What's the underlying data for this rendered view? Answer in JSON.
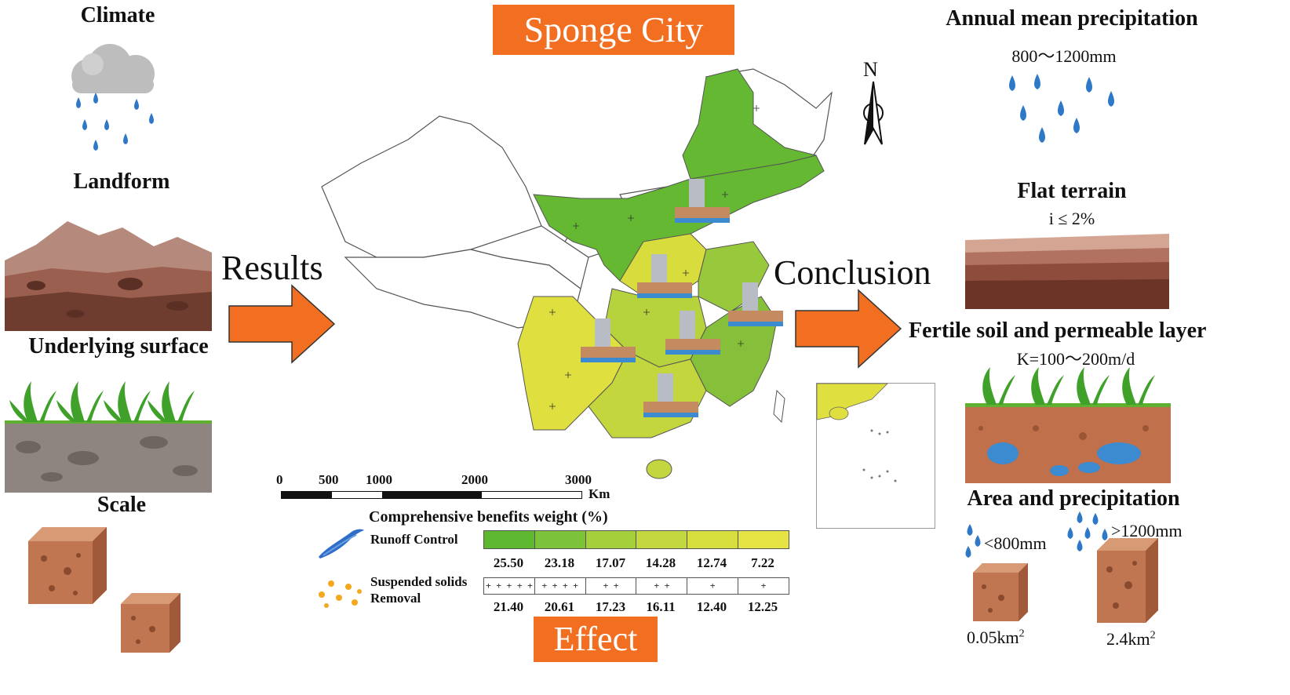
{
  "title_top": "Sponge City",
  "title_bottom": "Effect",
  "left": {
    "climate": "Climate",
    "landform": "Landform",
    "underlying": "Underlying surface",
    "scale": "Scale"
  },
  "arrows": {
    "results": "Results",
    "conclusion": "Conclusion"
  },
  "right": {
    "precip_title": "Annual mean precipitation",
    "precip_value": "800～1200mm",
    "flat_title": "Flat terrain",
    "flat_value": "i ≤ 2%",
    "soil_title": "Fertile soil and permeable layer",
    "soil_value": "K=100～200m/d",
    "area_title": "Area and precipitation",
    "low_precip": "<800mm",
    "high_precip": ">1200mm",
    "area_small_num": "0.05km",
    "area_large_num": "2.4km",
    "sup": "2"
  },
  "compass": "N",
  "scalebar": {
    "ticks": [
      "0",
      "500",
      "1000",
      "2000",
      "3000"
    ],
    "unit": "Km"
  },
  "legend": {
    "title": "Comprehensive benefits weight (%)",
    "runoff_label": "Runoff Control",
    "runoff_values": [
      "25.50",
      "23.18",
      "17.07",
      "14.28",
      "12.74",
      "7.22"
    ],
    "ss_label_1": "Suspended solids",
    "ss_label_2": "Removal",
    "ss_values": [
      "21.40",
      "20.61",
      "17.23",
      "16.11",
      "12.40",
      "12.25"
    ],
    "colors": [
      "#5db830",
      "#7cc23a",
      "#a6cf3c",
      "#c3d83e",
      "#d7df3f",
      "#e6e444"
    ]
  }
}
